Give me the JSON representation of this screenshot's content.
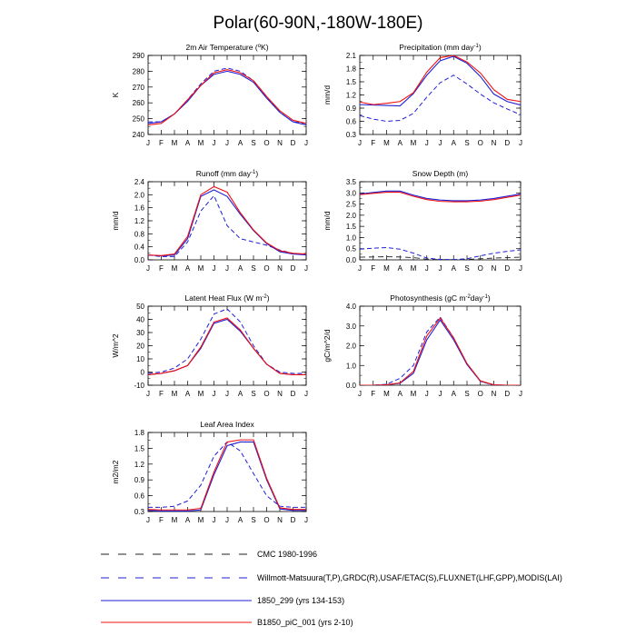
{
  "title": "Polar(60-90N,-180W-180E)",
  "months": [
    "J",
    "F",
    "M",
    "A",
    "M",
    "J",
    "J",
    "A",
    "S",
    "O",
    "N",
    "D",
    "J"
  ],
  "colors": {
    "obs": "#1f1fd6",
    "model1": "#1f1fd6",
    "model2": "#ee1111",
    "obs2": "#222222"
  },
  "legend": [
    {
      "label": "CMC 1980-1996",
      "style": "dash-black"
    },
    {
      "label": "Willmott-Matsuura(T,P),GRDC(R),USAF/ETAC(S),FLUXNET(LHF,GPP),MODIS(LAI)",
      "style": "dash-blue"
    },
    {
      "label": "1850_299 (yrs 134-153)",
      "style": "solid-blue"
    },
    {
      "label": "B1850_piC_001 (yrs 2-10)",
      "style": "solid-red"
    }
  ],
  "chart_data": [
    {
      "type": "line",
      "title": "2m Air Temperature (",
      "title_sup": "o",
      "title_tail": "K)",
      "ylabel": "K",
      "ylim": [
        240,
        290
      ],
      "yticks": [
        "240",
        "250",
        "260",
        "270",
        "280",
        "290"
      ],
      "yminor": 5,
      "series": [
        {
          "name": "Willmott-Matsuura",
          "style": "dash-blue",
          "values": [
            248,
            248,
            253,
            262,
            272,
            280,
            282,
            280,
            274,
            264,
            254,
            248,
            247
          ]
        },
        {
          "name": "1850_299",
          "style": "solid-blue",
          "values": [
            247,
            248,
            253,
            261,
            271,
            278,
            280,
            278,
            273,
            263,
            254,
            248,
            246
          ]
        },
        {
          "name": "B1850_piC_001",
          "style": "solid-red",
          "values": [
            246,
            247,
            253,
            262,
            271,
            279,
            281,
            279,
            274,
            264,
            255,
            249,
            247
          ]
        }
      ]
    },
    {
      "type": "line",
      "title": "Precipitation (mm day",
      "title_sup": "-1",
      "title_tail": ")",
      "ylabel": "mm/d",
      "ylim": [
        0.3,
        2.1
      ],
      "yticks": [
        "0.3",
        "0.6",
        "0.9",
        "1.2",
        "1.5",
        "1.8",
        "2.1"
      ],
      "yminor": 0.15,
      "series": [
        {
          "name": "Willmott-Matsuura",
          "style": "dash-blue",
          "values": [
            0.73,
            0.65,
            0.6,
            0.62,
            0.78,
            1.15,
            1.48,
            1.65,
            1.45,
            1.22,
            1.02,
            0.88,
            0.75
          ]
        },
        {
          "name": "1850_299",
          "style": "solid-blue",
          "values": [
            0.98,
            0.97,
            0.96,
            0.95,
            1.23,
            1.65,
            1.98,
            2.08,
            1.92,
            1.62,
            1.22,
            1.05,
            0.97
          ]
        },
        {
          "name": "B1850_piC_001",
          "style": "solid-red",
          "values": [
            1.04,
            0.98,
            1.01,
            1.05,
            1.25,
            1.72,
            2.05,
            2.1,
            1.95,
            1.7,
            1.32,
            1.1,
            1.05
          ]
        }
      ]
    },
    {
      "type": "line",
      "title": "Runoff (mm day",
      "title_sup": "-1",
      "title_tail": ")",
      "ylabel": "mm/d",
      "ylim": [
        0,
        2.4
      ],
      "yticks": [
        "0.0",
        "0.4",
        "0.8",
        "1.2",
        "1.6",
        "2.0",
        "2.4"
      ],
      "yminor": 0.2,
      "series": [
        {
          "name": "GRDC",
          "style": "dash-blue",
          "values": [
            0.15,
            0.1,
            0.1,
            0.55,
            1.5,
            1.97,
            1.05,
            0.65,
            0.55,
            0.45,
            0.3,
            0.2,
            0.15
          ]
        },
        {
          "name": "1850_299",
          "style": "solid-blue",
          "values": [
            0.15,
            0.12,
            0.15,
            0.65,
            1.95,
            2.15,
            1.95,
            1.4,
            0.9,
            0.5,
            0.25,
            0.18,
            0.15
          ]
        },
        {
          "name": "B1850_piC_001",
          "style": "solid-red",
          "values": [
            0.15,
            0.13,
            0.18,
            0.72,
            2.0,
            2.25,
            2.08,
            1.45,
            0.92,
            0.52,
            0.28,
            0.2,
            0.18
          ]
        }
      ]
    },
    {
      "type": "line",
      "title": "Snow Depth (m)",
      "title_sup": "",
      "title_tail": "",
      "ylabel": "mm/d",
      "ylim": [
        0,
        3.5
      ],
      "yticks": [
        "0.0",
        "0.5",
        "1.0",
        "1.5",
        "2.0",
        "2.5",
        "3.0",
        "3.5"
      ],
      "yminor": 0.25,
      "series": [
        {
          "name": "CMC 1980-1996",
          "style": "dash-black",
          "values": [
            0.12,
            0.13,
            0.14,
            0.13,
            0.1,
            0.03,
            0.01,
            0.01,
            0.02,
            0.05,
            0.08,
            0.1,
            0.12
          ]
        },
        {
          "name": "USAF/ETAC",
          "style": "dash-blue",
          "values": [
            0.48,
            0.52,
            0.55,
            0.48,
            0.3,
            0.08,
            0.02,
            0.01,
            0.05,
            0.18,
            0.3,
            0.38,
            0.45
          ]
        },
        {
          "name": "1850_299",
          "style": "solid-blue",
          "values": [
            2.95,
            3.02,
            3.08,
            3.08,
            2.9,
            2.75,
            2.68,
            2.65,
            2.65,
            2.68,
            2.75,
            2.85,
            2.95
          ]
        },
        {
          "name": "B1850_piC_001",
          "style": "solid-red",
          "values": [
            2.92,
            2.98,
            3.03,
            3.03,
            2.85,
            2.7,
            2.62,
            2.6,
            2.6,
            2.63,
            2.7,
            2.8,
            2.9
          ]
        }
      ]
    },
    {
      "type": "line",
      "title": "Latent Heat Flux (W m",
      "title_sup": "-2",
      "title_tail": ")",
      "ylabel": "W/m^2",
      "ylim": [
        -10,
        50
      ],
      "yticks": [
        "-10",
        "0",
        "10",
        "20",
        "30",
        "40",
        "50"
      ],
      "yminor": 5,
      "series": [
        {
          "name": "FLUXNET",
          "style": "dash-blue",
          "values": [
            -1,
            0,
            3,
            10,
            25,
            44,
            48,
            38,
            20,
            6,
            0,
            -1,
            -1
          ]
        },
        {
          "name": "1850_299",
          "style": "solid-blue",
          "values": [
            -2,
            -1,
            1,
            5,
            18,
            37,
            40,
            31,
            18,
            6,
            -1,
            -2,
            -2
          ]
        },
        {
          "name": "B1850_piC_001",
          "style": "solid-red",
          "values": [
            -2,
            -1,
            1,
            5,
            19,
            38,
            41,
            32,
            18,
            6,
            -1,
            -2,
            -2
          ]
        }
      ]
    },
    {
      "type": "line",
      "title": "Photosynthesis (gC m",
      "title_sup": "-2",
      "title_tail": "day",
      "title_sup2": "-1",
      "title_tail2": ")",
      "ylabel": "gC/m^2/d",
      "ylim": [
        0,
        4
      ],
      "yticks": [
        "0.0",
        "1.0",
        "2.0",
        "3.0",
        "4.0"
      ],
      "yminor": 0.5,
      "series": [
        {
          "name": "FLUXNET",
          "style": "dash-blue",
          "values": [
            0,
            0,
            0.05,
            0.35,
            1.0,
            2.7,
            3.45,
            2.4,
            1.05,
            0.2,
            0,
            0,
            0
          ]
        },
        {
          "name": "1850_299",
          "style": "solid-blue",
          "values": [
            0,
            0,
            0.02,
            0.1,
            0.6,
            2.3,
            3.3,
            2.3,
            1.05,
            0.2,
            0.02,
            0,
            0
          ]
        },
        {
          "name": "B1850_piC_001",
          "style": "solid-red",
          "values": [
            0,
            0,
            0.02,
            0.12,
            0.7,
            2.5,
            3.4,
            2.4,
            1.1,
            0.22,
            0.02,
            0,
            0
          ]
        }
      ]
    },
    {
      "type": "line",
      "title": "Leaf Area Index",
      "title_sup": "",
      "title_tail": "",
      "ylabel": "m2/m2",
      "ylim": [
        0.3,
        1.8
      ],
      "yticks": [
        "0.3",
        "0.6",
        "0.9",
        "1.2",
        "1.5",
        "1.8"
      ],
      "yminor": 0.15,
      "series": [
        {
          "name": "MODIS",
          "style": "dash-blue",
          "values": [
            0.38,
            0.38,
            0.4,
            0.5,
            0.8,
            1.35,
            1.62,
            1.45,
            1.02,
            0.6,
            0.4,
            0.38,
            0.38
          ]
        },
        {
          "name": "1850_299",
          "style": "solid-blue",
          "values": [
            0.32,
            0.31,
            0.31,
            0.31,
            0.33,
            1.0,
            1.55,
            1.62,
            1.62,
            0.9,
            0.35,
            0.32,
            0.32
          ]
        },
        {
          "name": "B1850_piC_001",
          "style": "solid-red",
          "values": [
            0.34,
            0.33,
            0.33,
            0.33,
            0.36,
            1.05,
            1.62,
            1.66,
            1.66,
            0.93,
            0.37,
            0.34,
            0.34
          ]
        }
      ]
    }
  ]
}
